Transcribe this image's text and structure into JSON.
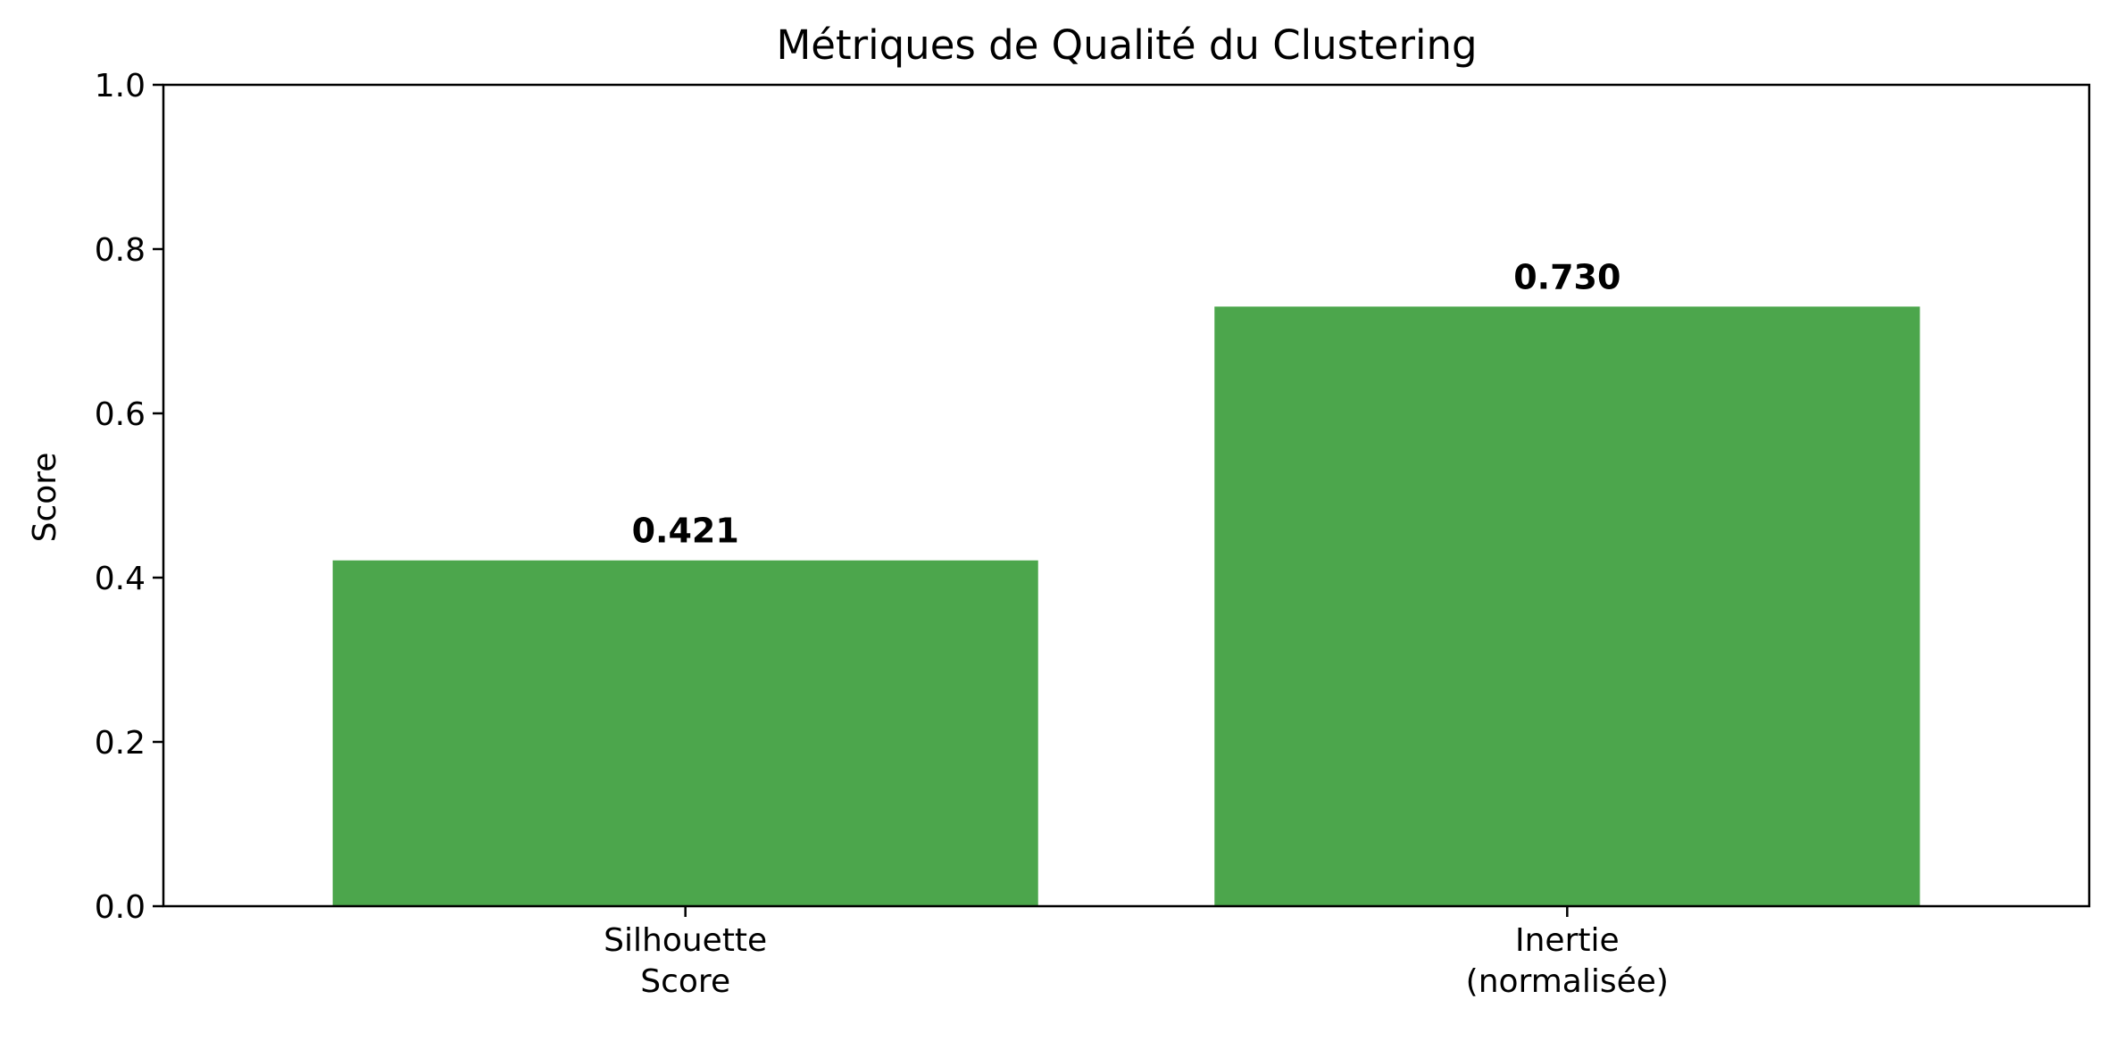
{
  "chart_data": {
    "type": "bar",
    "title": "Métriques de Qualité du Clustering",
    "xlabel": "",
    "ylabel": "Score",
    "categories": [
      [
        "Silhouette",
        "Score"
      ],
      [
        "Inertie",
        "(normalisée)"
      ]
    ],
    "values": [
      0.421,
      0.73
    ],
    "value_labels": [
      "0.421",
      "0.730"
    ],
    "ylim": [
      0,
      1.0
    ],
    "yticks": [
      0.0,
      0.2,
      0.4,
      0.6,
      0.8,
      1.0
    ],
    "ytick_labels": [
      "0.0",
      "0.2",
      "0.4",
      "0.6",
      "0.8",
      "1.0"
    ],
    "bar_color": "#4ca64c",
    "grid": false,
    "legend": "none"
  }
}
